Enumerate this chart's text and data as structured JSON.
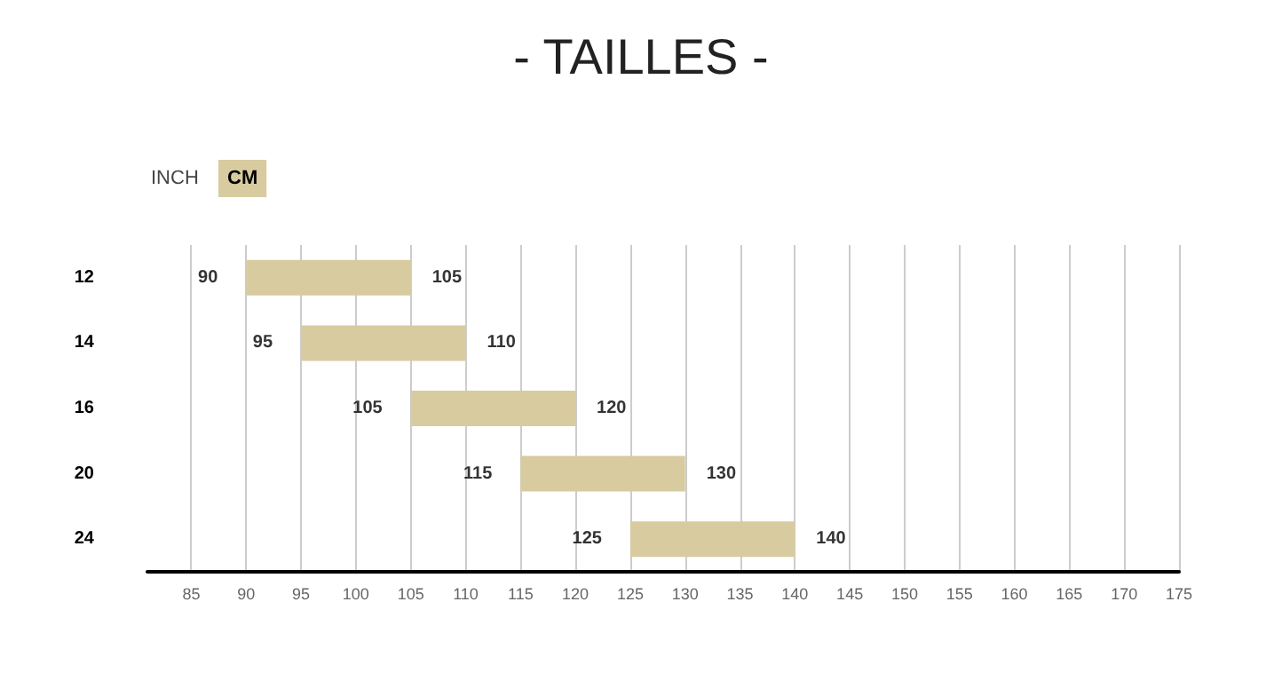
{
  "chart_data": {
    "type": "bar",
    "orientation": "horizontal",
    "title": "- TAILLES -",
    "categories": [
      "12",
      "14",
      "16",
      "20",
      "24"
    ],
    "base": [
      90,
      95,
      105,
      115,
      125
    ],
    "values": [
      15,
      15,
      15,
      15,
      15
    ],
    "color": "#d8cb9f",
    "xlim": [
      81,
      175
    ],
    "xticks": [
      85,
      90,
      95,
      100,
      105,
      110,
      115,
      120,
      125,
      130,
      135,
      140,
      145,
      150,
      155,
      160,
      165,
      170,
      175
    ],
    "grid": "x",
    "annotations": [
      "INCH",
      "CM",
      {
        "text": "90",
        "x": 90,
        "y": "12"
      },
      {
        "text": "105",
        "x": 105,
        "y": "12"
      },
      {
        "text": "95",
        "x": 95,
        "y": "14"
      },
      {
        "text": "110",
        "x": 110,
        "y": "14"
      },
      {
        "text": "105",
        "x": 105,
        "y": "16"
      },
      {
        "text": "120",
        "x": 120,
        "y": "16"
      },
      {
        "text": "115",
        "x": 115,
        "y": "20"
      },
      {
        "text": "130",
        "x": 130,
        "y": "20"
      },
      {
        "text": "125",
        "x": 125,
        "y": "24"
      },
      {
        "text": "140",
        "x": 140,
        "y": "24"
      }
    ]
  }
}
